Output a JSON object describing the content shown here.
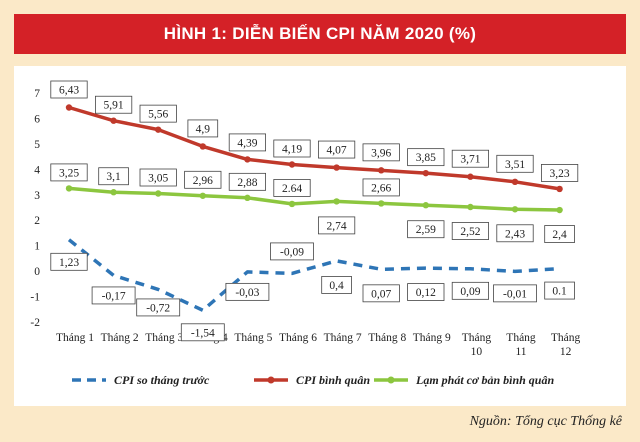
{
  "title": "HÌNH 1: DIỄN BIẾN CPI NĂM 2020 (%)",
  "source": "Nguồn: Tổng cục Thống kê",
  "chart_data": {
    "type": "line",
    "title": "HÌNH 1: DIỄN BIẾN CPI NĂM 2020 (%)",
    "categories": [
      [
        "Tháng 1"
      ],
      [
        "Tháng 2"
      ],
      [
        "Tháng 3"
      ],
      [
        "Tháng 4"
      ],
      [
        "Tháng 5"
      ],
      [
        "Tháng 6"
      ],
      [
        "Tháng 7"
      ],
      [
        "Tháng 8"
      ],
      [
        "Tháng 9"
      ],
      [
        "Tháng",
        "10"
      ],
      [
        "Tháng",
        "11"
      ],
      [
        "Tháng",
        "12"
      ]
    ],
    "ylim": [
      -2,
      7
    ],
    "yticks": [
      -2,
      -1,
      0,
      1,
      2,
      3,
      4,
      5,
      6,
      7
    ],
    "legend_position": "bottom",
    "grid": false,
    "series": [
      {
        "name": "CPI so tháng trước",
        "color": "#2e75b6",
        "style": "dashed",
        "values": [
          1.23,
          -0.17,
          -0.72,
          -1.54,
          -0.03,
          -0.09,
          0.4,
          0.07,
          0.12,
          0.09,
          -0.01,
          0.1
        ],
        "labels": [
          "1,23",
          "-0,17",
          "-0,72",
          "-1,54",
          "-0,03",
          "-0,09",
          "0,4",
          "0,07",
          "0,12",
          "0,09",
          "-0,01",
          "0.1"
        ]
      },
      {
        "name": "CPI bình quân",
        "color": "#c0392b",
        "style": "solid",
        "values": [
          6.43,
          5.91,
          5.56,
          4.9,
          4.39,
          4.19,
          4.07,
          3.96,
          3.85,
          3.71,
          3.51,
          3.23
        ],
        "labels": [
          "6,43",
          "5,91",
          "5,56",
          "4,9",
          "4,39",
          "4,19",
          "4,07",
          "3,96",
          "3,85",
          "3,71",
          "3,51",
          "3,23"
        ]
      },
      {
        "name": "Lạm phát cơ bản bình quân",
        "color": "#8cc63f",
        "style": "solid",
        "values": [
          3.25,
          3.1,
          3.05,
          2.96,
          2.88,
          2.64,
          2.74,
          2.66,
          2.59,
          2.52,
          2.43,
          2.4
        ],
        "labels": [
          "3,25",
          "3,1",
          "3,05",
          "2,96",
          "2,88",
          "2.64",
          "2,74",
          "2,66",
          "2,59",
          "2,52",
          "2,43",
          "2,4"
        ]
      }
    ]
  }
}
